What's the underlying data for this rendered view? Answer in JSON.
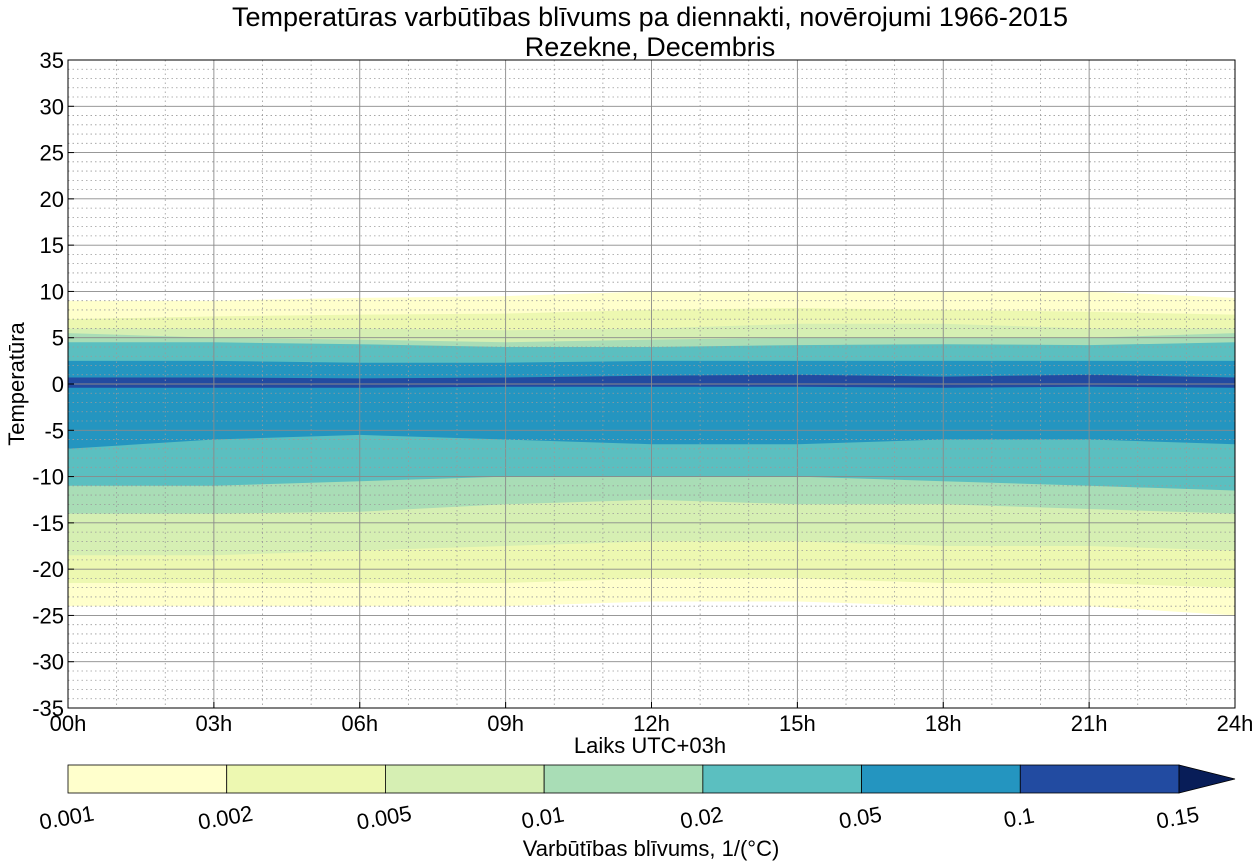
{
  "chart_data": {
    "type": "contourf",
    "title": "Temperatūras varbūtības blīvums pa diennakti, novērojumi 1966-2015",
    "subtitle": "Rezekne, Decembris",
    "xlabel": "Laiks UTC+03h",
    "ylabel": "Temperatūra",
    "x_ticks": [
      "00h",
      "03h",
      "06h",
      "09h",
      "12h",
      "15h",
      "18h",
      "21h",
      "24h"
    ],
    "x_range_hours": [
      0,
      24
    ],
    "y_ticks": [
      "35",
      "30",
      "25",
      "20",
      "15",
      "10",
      "5",
      "0",
      "-5",
      "-10",
      "-15",
      "-20",
      "-25",
      "-30",
      "-35"
    ],
    "y_range": [
      -35,
      35
    ],
    "grid": "major solid, minor dotted",
    "colorbar": {
      "label": "Varbūtības blīvums, 1/($^\\circ$C)",
      "label_display": "Varbūtības blīvums, 1/(°C)",
      "levels": [
        0.001,
        0.002,
        0.005,
        0.01,
        0.02,
        0.05,
        0.1,
        0.15
      ],
      "tick_labels": [
        "0.001",
        "0.002",
        "0.005",
        "0.01",
        "0.02",
        "0.05",
        "0.1",
        "0.15"
      ],
      "colors": [
        "#ffffcc",
        "#edf8b1",
        "#d6efb3",
        "#a9ddb6",
        "#5bbfc0",
        "#2495c0",
        "#224ba1",
        "#081d58"
      ],
      "extend": "max",
      "placement": "bottom"
    },
    "bands_by_level": [
      {
        "level_from": 0.001,
        "color": "#ffffcc",
        "temp_top": [
          9.0,
          9.0,
          9.3,
          9.5,
          10.0,
          10.0,
          10.0,
          10.0,
          9.3
        ],
        "temp_bottom": [
          -24.0,
          -24.0,
          -24.0,
          -24.0,
          -23.5,
          -23.5,
          -24.0,
          -24.0,
          -25.0
        ]
      },
      {
        "level_from": 0.002,
        "color": "#edf8b1",
        "temp_top": [
          7.0,
          7.3,
          7.5,
          7.6,
          8.0,
          8.2,
          8.0,
          7.8,
          7.5
        ],
        "temp_bottom": [
          -21.5,
          -21.5,
          -21.5,
          -21.5,
          -21.0,
          -21.0,
          -21.5,
          -21.5,
          -22.0
        ]
      },
      {
        "level_from": 0.005,
        "color": "#d6efb3",
        "temp_top": [
          6.0,
          6.0,
          6.0,
          5.8,
          6.0,
          6.5,
          6.5,
          6.0,
          6.0
        ],
        "temp_bottom": [
          -18.5,
          -18.5,
          -18.0,
          -17.5,
          -17.0,
          -17.0,
          -17.5,
          -17.5,
          -18.0
        ]
      },
      {
        "level_from": 0.01,
        "color": "#a9ddb6",
        "temp_top": [
          5.5,
          5.0,
          4.8,
          4.5,
          4.8,
          5.0,
          5.0,
          5.0,
          5.5
        ],
        "temp_bottom": [
          -14.0,
          -14.0,
          -13.8,
          -13.0,
          -12.5,
          -13.0,
          -13.0,
          -13.5,
          -14.0
        ]
      },
      {
        "level_from": 0.02,
        "color": "#5bbfc0",
        "temp_top": [
          4.5,
          4.5,
          4.3,
          4.0,
          4.0,
          4.2,
          4.3,
          4.2,
          4.5
        ],
        "temp_bottom": [
          -11.0,
          -11.0,
          -10.5,
          -10.0,
          -10.0,
          -10.0,
          -10.5,
          -11.0,
          -11.5
        ]
      },
      {
        "level_from": 0.05,
        "color": "#2495c0",
        "temp_top": [
          2.5,
          2.5,
          2.3,
          2.3,
          2.5,
          2.5,
          2.5,
          2.5,
          2.5
        ],
        "temp_bottom": [
          -7.0,
          -6.0,
          -5.5,
          -6.0,
          -6.5,
          -6.5,
          -6.0,
          -6.0,
          -6.5
        ]
      },
      {
        "level_from": 0.1,
        "color": "#224ba1",
        "temp_top": [
          0.7,
          0.7,
          0.6,
          0.7,
          0.9,
          1.0,
          0.8,
          1.0,
          0.7
        ],
        "temp_bottom": [
          -0.4,
          -0.4,
          -0.4,
          -0.3,
          -0.3,
          -0.3,
          -0.4,
          -0.3,
          -0.4
        ]
      }
    ]
  }
}
